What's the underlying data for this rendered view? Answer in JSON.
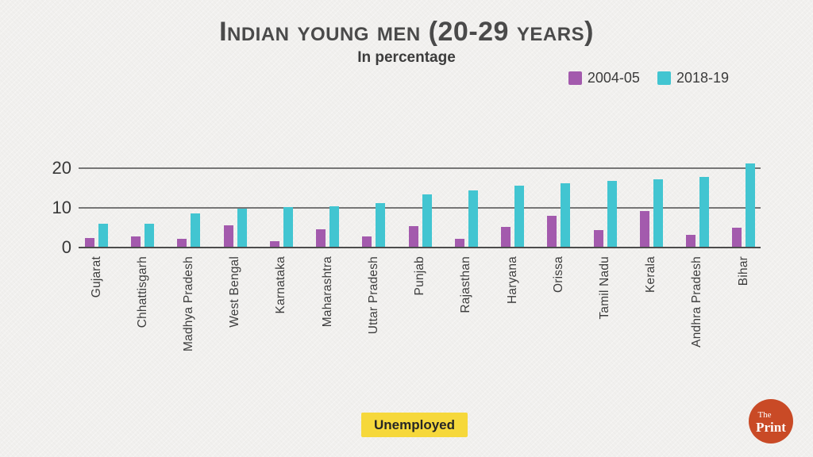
{
  "header": {
    "title": "Indian young men (20-29 years)",
    "subtitle": "In percentage"
  },
  "chart_data": {
    "type": "bar",
    "title": "Indian young men (20-29 years)",
    "subtitle": "In percentage",
    "categories": [
      "Gujarat",
      "Chhattisgarh",
      "Madhya Pradesh",
      "West Bengal",
      "Karnataka",
      "Maharashtra",
      "Uttar Pradesh",
      "Punjab",
      "Rajasthan",
      "Haryana",
      "Orissa",
      "Tamil Nadu",
      "Kerala",
      "Andhra Pradesh",
      "Bihar"
    ],
    "series": [
      {
        "name": "2004-05",
        "color": "#a35aad",
        "values": [
          2.4,
          2.9,
          2.3,
          5.7,
          1.6,
          4.7,
          2.8,
          5.4,
          2.3,
          5.2,
          8.1,
          4.4,
          9.3,
          3.3,
          5.0
        ]
      },
      {
        "name": "2018-19",
        "color": "#42c5d1",
        "values": [
          6.0,
          6.1,
          8.6,
          9.9,
          10.2,
          10.4,
          11.3,
          13.4,
          14.4,
          15.7,
          16.2,
          16.8,
          17.2,
          17.8,
          21.2
        ]
      }
    ],
    "xlabel": "",
    "ylabel": "",
    "yticks": [
      "0",
      "10",
      "20"
    ],
    "ylim": [
      0,
      22
    ],
    "grid": true,
    "legend_position": "top-right",
    "x_label_rotation": -90
  },
  "footer": {
    "badge": "Unemployed"
  },
  "logo": {
    "line1": "The",
    "line2": "Print",
    "color": "#c94a26"
  }
}
